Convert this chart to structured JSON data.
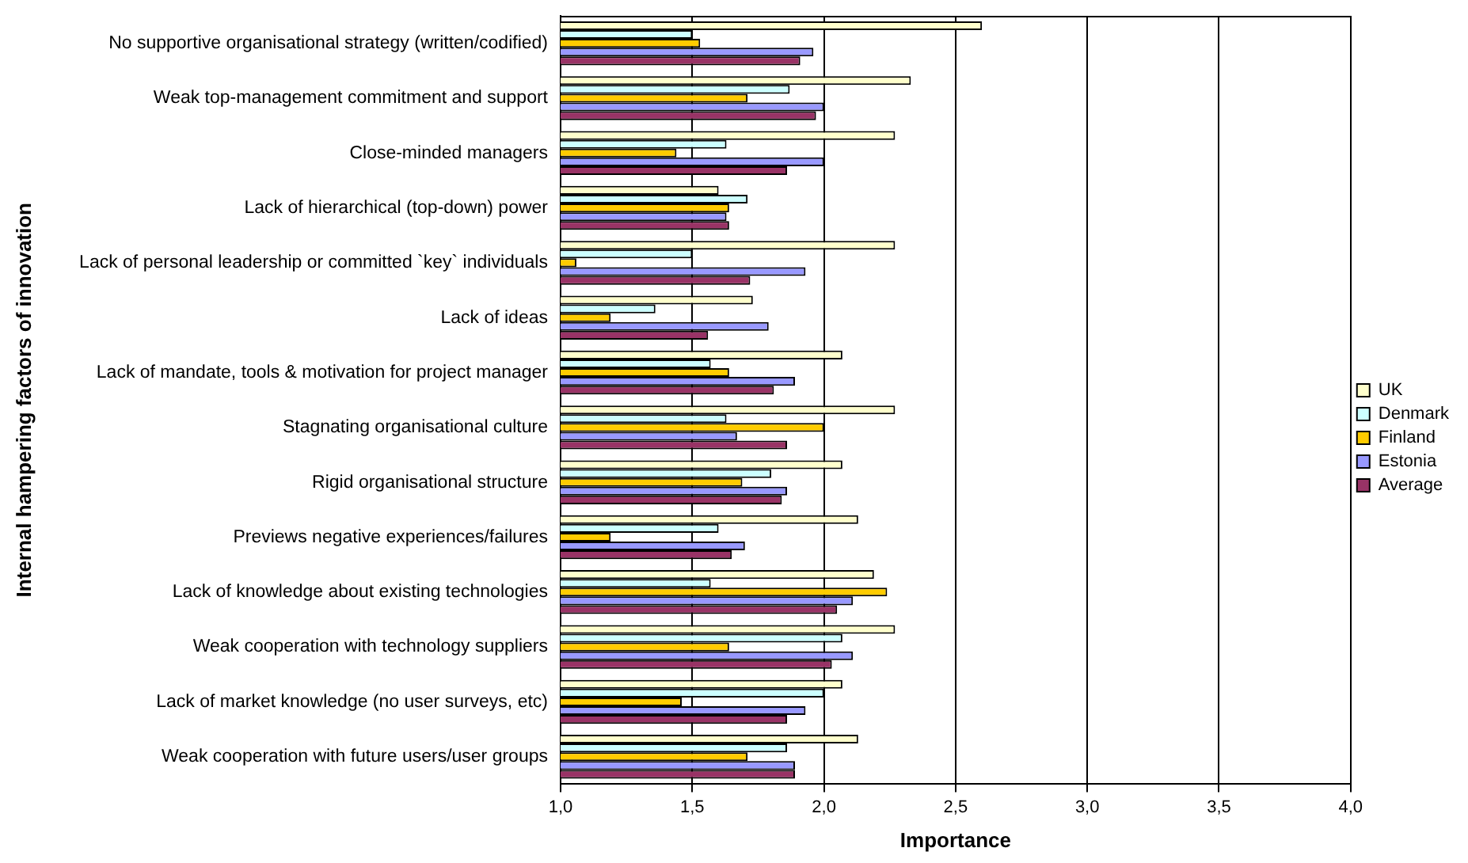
{
  "chart_data": {
    "type": "bar",
    "orientation": "horizontal",
    "xlabel": "Importance",
    "ylabel": "Internal hampering factors of innovation",
    "categories": [
      "No supportive organisational strategy (written/codified)",
      "Weak top-management commitment and support",
      "Close-minded managers",
      "Lack of hierarchical (top-down) power",
      "Lack of personal leadership or committed `key` individuals",
      "Lack of ideas",
      "Lack of mandate, tools & motivation for project manager",
      "Stagnating organisational culture",
      "Rigid organisational structure",
      "Previews negative experiences/failures",
      "Lack of knowledge about existing technologies",
      "Weak cooperation with technology suppliers",
      "Lack of market knowledge (no user surveys, etc)",
      "Weak cooperation with future users/user groups"
    ],
    "series": [
      {
        "name": "UK",
        "color": "#ffffcc",
        "values": [
          2.6,
          2.33,
          2.27,
          1.6,
          2.27,
          1.73,
          2.07,
          2.27,
          2.07,
          2.13,
          2.19,
          2.27,
          2.07,
          2.13
        ]
      },
      {
        "name": "Denmark",
        "color": "#ccffff",
        "values": [
          1.5,
          1.87,
          1.63,
          1.71,
          1.5,
          1.36,
          1.57,
          1.63,
          1.8,
          1.6,
          1.57,
          2.07,
          2.0,
          1.86
        ]
      },
      {
        "name": "Finland",
        "color": "#ffcc00",
        "values": [
          1.53,
          1.71,
          1.44,
          1.64,
          1.06,
          1.19,
          1.64,
          2.0,
          1.69,
          1.19,
          2.24,
          1.64,
          1.46,
          1.71
        ]
      },
      {
        "name": "Estonia",
        "color": "#9999ff",
        "values": [
          1.96,
          2.0,
          2.0,
          1.63,
          1.93,
          1.79,
          1.89,
          1.67,
          1.86,
          1.7,
          2.11,
          2.11,
          1.93,
          1.89
        ]
      },
      {
        "name": "Average",
        "color": "#993366",
        "values": [
          1.91,
          1.97,
          1.86,
          1.64,
          1.72,
          1.56,
          1.81,
          1.86,
          1.84,
          1.65,
          2.05,
          2.03,
          1.86,
          1.89
        ]
      }
    ],
    "xlim": [
      1.0,
      4.0
    ],
    "xticks": [
      {
        "value": 1.0,
        "label": "1,0"
      },
      {
        "value": 1.5,
        "label": "1,5"
      },
      {
        "value": 2.0,
        "label": "2,0"
      },
      {
        "value": 2.5,
        "label": "2,5"
      },
      {
        "value": 3.0,
        "label": "3,0"
      },
      {
        "value": 3.5,
        "label": "3,5"
      },
      {
        "value": 4.0,
        "label": "4,0"
      }
    ],
    "grid": "x",
    "legend": "right"
  }
}
